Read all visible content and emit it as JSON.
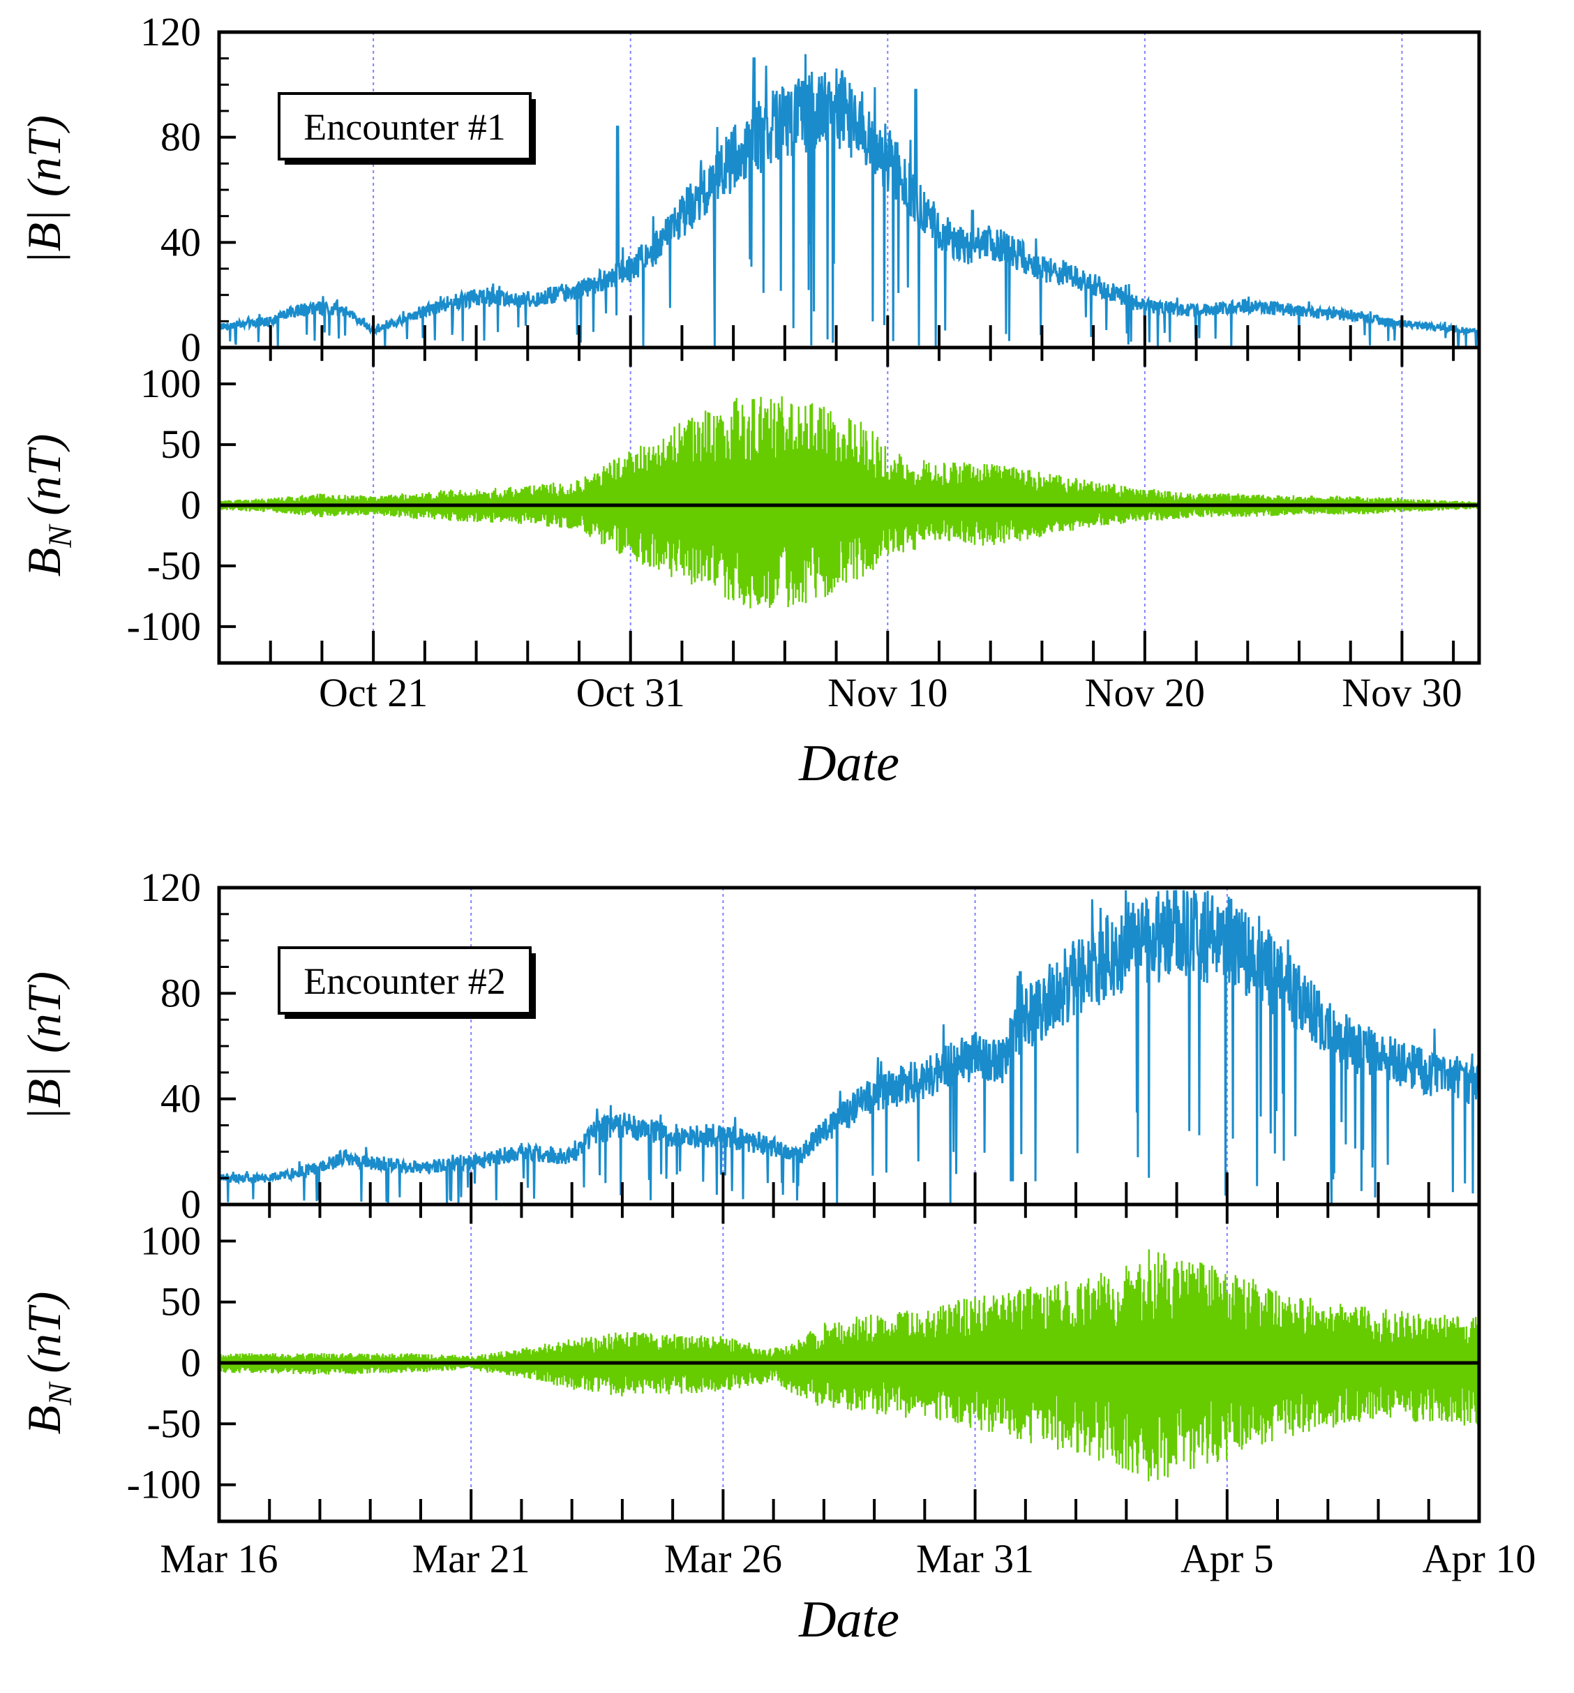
{
  "chart_data": [
    {
      "type": "line",
      "title": "Encounter #1",
      "xlabel": "Date",
      "x_ticks": [
        "Oct 21",
        "Oct 31",
        "Nov 10",
        "Nov 20",
        "Nov 30"
      ],
      "x_range_days": [
        0,
        49
      ],
      "x_tick_days": [
        6,
        16,
        26,
        36,
        46
      ],
      "panels": [
        {
          "name": "magnitude",
          "ylabel": "|B| (nT)",
          "ylabel_main": "|B|",
          "ylabel_unit": "(nT)",
          "ylim": [
            0,
            120
          ],
          "yticks": [
            0,
            40,
            80,
            120
          ],
          "color": "#1a8ccc",
          "series": {
            "name": "|B|",
            "days": [
              0,
              2,
              3,
              4,
              5,
              6,
              8,
              9,
              10,
              12,
              13,
              14,
              15,
              16,
              17,
              18,
              19,
              20,
              21,
              22,
              23,
              24,
              25,
              26,
              27,
              28,
              29,
              30,
              31,
              32,
              33,
              34,
              35,
              36,
              38,
              40,
              42,
              44,
              46,
              48,
              49
            ],
            "values": [
              8,
              10,
              14,
              15,
              14,
              6,
              14,
              17,
              19,
              18,
              20,
              22,
              26,
              30,
              38,
              50,
              60,
              72,
              80,
              86,
              90,
              92,
              84,
              72,
              58,
              45,
              38,
              40,
              36,
              30,
              28,
              24,
              20,
              16,
              14,
              16,
              14,
              12,
              9,
              7,
              6
            ]
          },
          "spikes": [
            {
              "day": 15.5,
              "value": 84
            },
            {
              "day": 20.8,
              "value": 110
            },
            {
              "day": 27.1,
              "value": 98
            },
            {
              "day": 29.3,
              "value": 52
            }
          ]
        },
        {
          "name": "normal",
          "ylabel": "BN (nT)",
          "ylabel_main": "B",
          "ylabel_sub": "N",
          "ylabel_unit": "(nT)",
          "ylim": [
            -130,
            130
          ],
          "yticks": [
            -100,
            -50,
            0,
            50,
            100
          ],
          "color": "#66cc00",
          "envelope": {
            "days": [
              0,
              2,
              4,
              6,
              8,
              10,
              12,
              14,
              15,
              16,
              18,
              20,
              21,
              22,
              24,
              25,
              26,
              27,
              28,
              30,
              32,
              34,
              36,
              38,
              40,
              42,
              44,
              46,
              48,
              49
            ],
            "upper": [
              4,
              6,
              10,
              8,
              12,
              14,
              16,
              22,
              35,
              45,
              70,
              88,
              92,
              90,
              80,
              70,
              50,
              40,
              35,
              36,
              28,
              20,
              14,
              10,
              10,
              8,
              8,
              6,
              4,
              3
            ],
            "lower": [
              -4,
              -6,
              -10,
              -8,
              -12,
              -14,
              -16,
              -20,
              -35,
              -45,
              -65,
              -80,
              -88,
              -85,
              -75,
              -60,
              -45,
              -38,
              -30,
              -34,
              -26,
              -18,
              -14,
              -10,
              -10,
              -8,
              -8,
              -6,
              -4,
              -3
            ]
          }
        }
      ]
    },
    {
      "type": "line",
      "title": "Encounter #2",
      "xlabel": "Date",
      "x_ticks": [
        "Mar 16",
        "Mar 21",
        "Mar 26",
        "Mar 31",
        "Apr 5",
        "Apr 10"
      ],
      "x_range_days": [
        0,
        25
      ],
      "x_tick_days": [
        0,
        5,
        10,
        15,
        20,
        25
      ],
      "panels": [
        {
          "name": "magnitude",
          "ylabel": "|B| (nT)",
          "ylabel_main": "|B|",
          "ylabel_unit": "(nT)",
          "ylim": [
            0,
            120
          ],
          "yticks": [
            0,
            40,
            80,
            120
          ],
          "color": "#1a8ccc",
          "series": {
            "name": "|B|",
            "days": [
              0,
              1,
              2,
              2.5,
              3,
              4,
              5,
              6,
              7,
              7.5,
              8,
              9,
              10,
              11,
              11.5,
              12,
              13,
              14,
              15,
              15.5,
              16,
              17,
              18,
              19,
              20,
              21,
              22,
              22.5,
              23,
              24,
              25
            ],
            "values": [
              10,
              10,
              14,
              18,
              16,
              14,
              16,
              20,
              18,
              28,
              30,
              26,
              26,
              22,
              18,
              28,
              42,
              48,
              56,
              54,
              70,
              86,
              98,
              104,
              100,
              86,
              66,
              60,
              56,
              50,
              45
            ]
          },
          "spikes": [
            {
              "day": 15.9,
              "value": 88
            },
            {
              "day": 18.7,
              "value": 110
            },
            {
              "day": 20,
              "value": 112
            }
          ]
        },
        {
          "name": "normal",
          "ylabel": "BN (nT)",
          "ylabel_main": "B",
          "ylabel_sub": "N",
          "ylabel_unit": "(nT)",
          "ylim": [
            -130,
            130
          ],
          "yticks": [
            -100,
            -50,
            0,
            50,
            100
          ],
          "color": "#66cc00",
          "envelope": {
            "days": [
              0,
              2,
              4,
              5,
              6,
              7,
              8,
              9,
              10,
              11,
              11.5,
              12,
              13,
              14,
              15,
              16,
              17,
              18,
              18.5,
              19,
              20,
              21,
              22,
              23,
              24,
              25
            ],
            "upper": [
              8,
              8,
              8,
              6,
              12,
              20,
              26,
              24,
              22,
              12,
              20,
              35,
              40,
              45,
              55,
              62,
              70,
              80,
              95,
              90,
              80,
              60,
              50,
              45,
              40,
              38
            ],
            "lower": [
              -8,
              -10,
              -8,
              -6,
              -12,
              -22,
              -28,
              -26,
              -24,
              -16,
              -28,
              -38,
              -42,
              -48,
              -55,
              -65,
              -75,
              -90,
              -100,
              -92,
              -80,
              -65,
              -55,
              -45,
              -50,
              -52
            ]
          }
        }
      ]
    }
  ]
}
